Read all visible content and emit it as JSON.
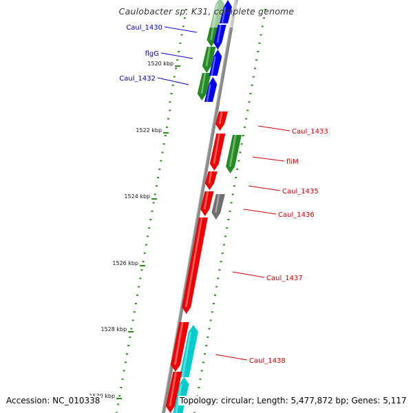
{
  "title": "Caulobacter sp. K31, complete genome",
  "footer": {
    "accession": "Accession: NC_010338",
    "stats": "Topology: circular; Length: 5,477,872 bp; Genes: 5,117"
  },
  "colors": {
    "backbone": "#8a8a8a",
    "tick": "#2e8b20",
    "label_forward": "#0000cc",
    "label_reverse": "#cc0000"
  },
  "scale_labels": [
    "1520 kbp",
    "1522 kbp",
    "1524 kbp",
    "1526 kbp",
    "1528 kbp",
    "1530 kbp"
  ],
  "genes": [
    {
      "id": "Caul_1430",
      "label": "Caul_1430",
      "color": "#0000ee",
      "labeled": true,
      "strand": "forward"
    },
    {
      "id": "flgG",
      "label": "flgG",
      "color": "#0000ee",
      "labeled": true,
      "strand": "forward"
    },
    {
      "id": "Caul_1432",
      "label": "Caul_1432",
      "color": "#0000ee",
      "labeled": true,
      "strand": "forward"
    },
    {
      "id": "Caul_1433",
      "label": "Caul_1433",
      "color": "#ee0000",
      "labeled": true,
      "strand": "reverse"
    },
    {
      "id": "fliM",
      "label": "fliM",
      "color": "#ee0000",
      "labeled": true,
      "strand": "reverse"
    },
    {
      "id": "Caul_1435",
      "label": "Caul_1435",
      "color": "#ee0000",
      "labeled": true,
      "strand": "reverse"
    },
    {
      "id": "Caul_1436",
      "label": "Caul_1436",
      "color": "#ee0000",
      "labeled": true,
      "strand": "reverse"
    },
    {
      "id": "Caul_1437",
      "label": "Caul_1437",
      "color": "#ee0000",
      "labeled": true,
      "strand": "reverse"
    },
    {
      "id": "Caul_1438",
      "label": "Caul_1438",
      "color": "#ee0000",
      "labeled": true,
      "strand": "reverse"
    }
  ],
  "feature_colors": {
    "cds_green": "#228b22",
    "trna_gray": "#6e6e6e",
    "misc_cyan": "#00cccc"
  }
}
